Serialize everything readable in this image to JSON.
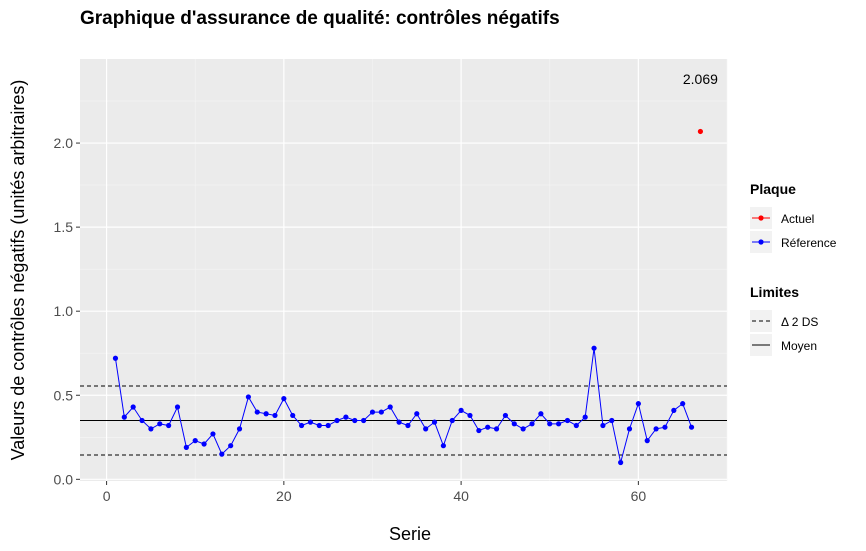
{
  "chart_data": {
    "type": "line",
    "title": "Graphique d'assurance de qualité: contrôles négatifs",
    "xlabel": "Serie",
    "ylabel": "Valeurs de contrôles négatifs (unités arbitraires)",
    "xlim": [
      -3,
      70
    ],
    "ylim": [
      -0.01,
      2.5
    ],
    "x_ticks": [
      0,
      20,
      40,
      60
    ],
    "y_ticks": [
      0.0,
      0.5,
      1.0,
      1.5,
      2.0
    ],
    "x_tick_labels": [
      "0",
      "20",
      "40",
      "60"
    ],
    "y_tick_labels": [
      "0.0",
      "0.5",
      "1.0",
      "1.5",
      "2.0"
    ],
    "grid": true,
    "series": [
      {
        "name": "Référence",
        "color": "#0000ff",
        "x": [
          1,
          2,
          3,
          4,
          5,
          6,
          7,
          8,
          9,
          10,
          11,
          12,
          13,
          14,
          15,
          16,
          17,
          18,
          19,
          20,
          21,
          22,
          23,
          24,
          25,
          26,
          27,
          28,
          29,
          30,
          31,
          32,
          33,
          34,
          35,
          36,
          37,
          38,
          39,
          40,
          41,
          42,
          43,
          44,
          45,
          46,
          47,
          48,
          49,
          50,
          51,
          52,
          53,
          54,
          55,
          56,
          57,
          58,
          59,
          60,
          61,
          62,
          63,
          64,
          65,
          66
        ],
        "y": [
          0.72,
          0.37,
          0.43,
          0.35,
          0.3,
          0.33,
          0.32,
          0.43,
          0.19,
          0.23,
          0.21,
          0.27,
          0.15,
          0.2,
          0.3,
          0.49,
          0.4,
          0.39,
          0.38,
          0.48,
          0.38,
          0.32,
          0.34,
          0.32,
          0.32,
          0.35,
          0.37,
          0.35,
          0.35,
          0.4,
          0.4,
          0.43,
          0.34,
          0.32,
          0.39,
          0.3,
          0.34,
          0.2,
          0.35,
          0.41,
          0.38,
          0.29,
          0.31,
          0.3,
          0.38,
          0.33,
          0.3,
          0.33,
          0.39,
          0.33,
          0.33,
          0.35,
          0.32,
          0.37,
          0.78,
          0.32,
          0.35,
          0.1,
          0.3,
          0.45,
          0.23,
          0.3,
          0.31,
          0.41,
          0.45,
          0.31
        ]
      },
      {
        "name": "Actuel",
        "color": "#ff0000",
        "x": [
          67
        ],
        "y": [
          2.069
        ]
      }
    ],
    "limits": {
      "mean": 0.35,
      "upper_2sd": 0.555,
      "lower_2sd": 0.145,
      "mean_label": "Moyen",
      "sd_label": "Δ 2 DS"
    },
    "annotation": {
      "text": "2.069",
      "x": 67,
      "y": 2.38
    },
    "legend": {
      "placement": "right",
      "groups": [
        {
          "title": "Plaque",
          "items": [
            "Actuel",
            "Réference"
          ]
        },
        {
          "title": "Limites",
          "items": [
            "Δ 2 DS",
            "Moyen"
          ]
        }
      ]
    }
  },
  "colors": {
    "panel_bg": "#ebebeb",
    "grid_major": "#ffffff",
    "reference": "#0000ff",
    "current": "#ff0000",
    "limit_line": "#000000"
  }
}
